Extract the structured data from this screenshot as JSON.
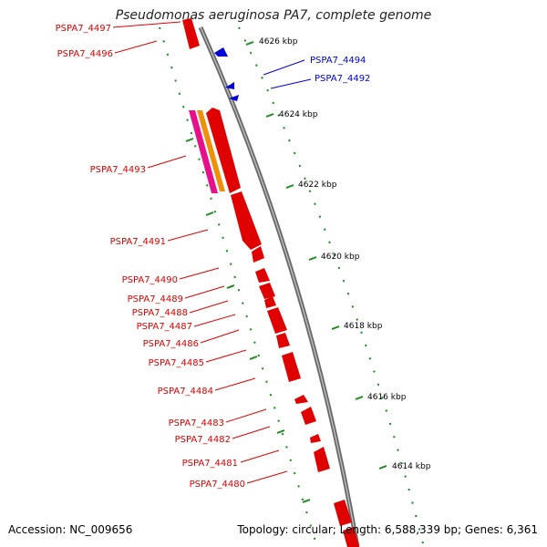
{
  "title": "Pseudomonas aeruginosa PA7, complete genome",
  "footer": {
    "accession": "Accession: NC_009656",
    "topology": "Topology: circular; Length: 6,588,339 bp; Genes: 6,361"
  },
  "kbp_labels": [
    "4626 kbp",
    "4624 kbp",
    "4622 kbp",
    "4620 kbp",
    "4618 kbp",
    "4616 kbp",
    "4614 kbp"
  ],
  "genes": [
    {
      "label": "PSPA7_4497",
      "strand": "minus",
      "color": "#e00000"
    },
    {
      "label": "PSPA7_4496",
      "strand": "minus",
      "color": "#e00000"
    },
    {
      "label": "PSPA7_4494",
      "strand": "plus",
      "color": "#0000dd"
    },
    {
      "label": "PSPA7_4492",
      "strand": "plus",
      "color": "#0000dd"
    },
    {
      "label": "PSPA7_4493",
      "strand": "minus",
      "color": "#e00000"
    },
    {
      "label": "PSPA7_4491",
      "strand": "minus",
      "color": "#e00000"
    },
    {
      "label": "PSPA7_4490",
      "strand": "minus",
      "color": "#e00000"
    },
    {
      "label": "PSPA7_4489",
      "strand": "minus",
      "color": "#e00000"
    },
    {
      "label": "PSPA7_4488",
      "strand": "minus",
      "color": "#e00000"
    },
    {
      "label": "PSPA7_4487",
      "strand": "minus",
      "color": "#e00000"
    },
    {
      "label": "PSPA7_4486",
      "strand": "minus",
      "color": "#e00000"
    },
    {
      "label": "PSPA7_4485",
      "strand": "minus",
      "color": "#e00000"
    },
    {
      "label": "PSPA7_4484",
      "strand": "minus",
      "color": "#e00000"
    },
    {
      "label": "PSPA7_4483",
      "strand": "minus",
      "color": "#e00000"
    },
    {
      "label": "PSPA7_4482",
      "strand": "minus",
      "color": "#e00000"
    },
    {
      "label": "PSPA7_4481",
      "strand": "minus",
      "color": "#e00000"
    },
    {
      "label": "PSPA7_4480",
      "strand": "minus",
      "color": "#e00000"
    }
  ],
  "colors": {
    "backbone": "#8c8c8c",
    "gene_minus": "#e00000",
    "gene_plus": "#0000dd",
    "feature_magenta": "#e8108a",
    "feature_orange": "#f0900a",
    "tick": "#1a8a1a"
  }
}
